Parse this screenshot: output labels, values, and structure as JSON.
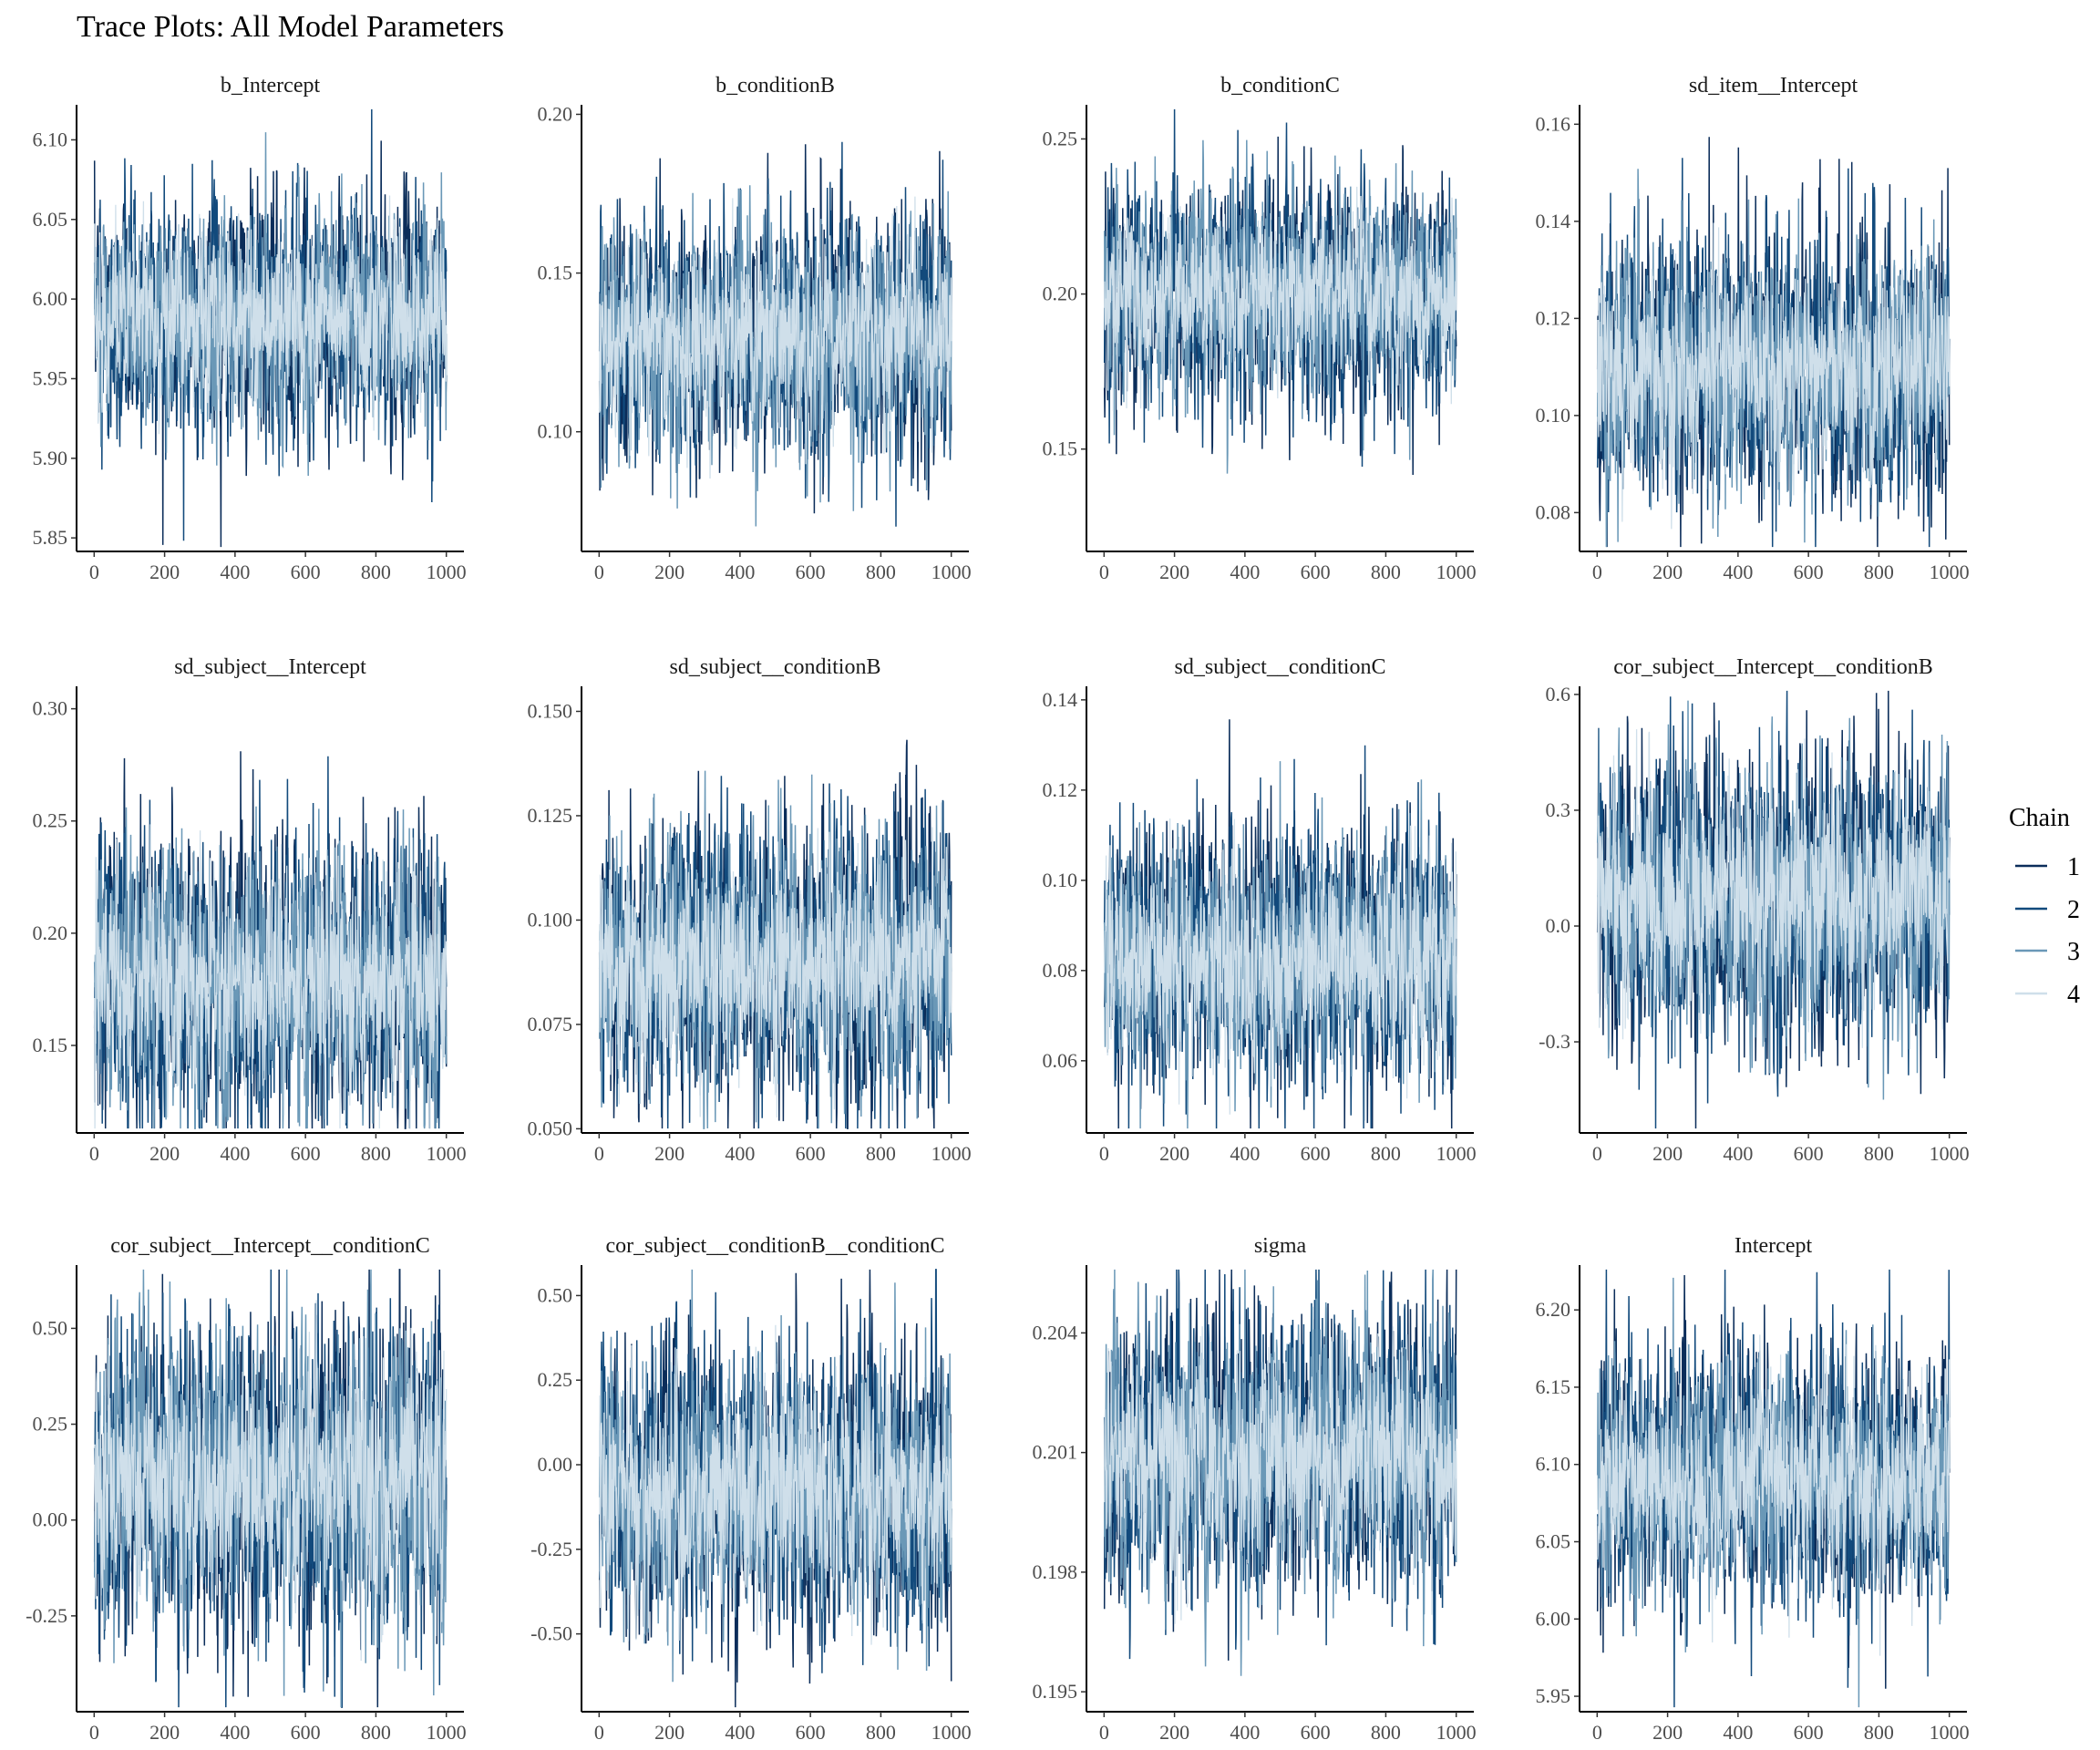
{
  "title": "Trace Plots: All Model Parameters",
  "chart_data": {
    "type": "line",
    "title": "Trace Plots: All Model Parameters",
    "xlabel": "",
    "ylabel": "",
    "x_range": [
      0,
      1000
    ],
    "xlim": [
      -50,
      1050
    ],
    "xticks": [
      0,
      200,
      400,
      600,
      800,
      1000
    ],
    "xtick_labels": [
      "0",
      "200",
      "400",
      "600",
      "800",
      "1000"
    ],
    "grid": false,
    "legend": {
      "title": "Chain",
      "position": "right",
      "entries": [
        "1",
        "2",
        "3",
        "4"
      ],
      "colors": [
        "#0b2d5a",
        "#124a7c",
        "#6a98b7",
        "#cfdfea"
      ]
    },
    "panels": [
      {
        "name": "b_Intercept",
        "ylim": [
          5.8415,
          6.122
        ],
        "yticks": [
          5.85,
          5.9,
          5.95,
          6.0,
          6.05,
          6.1
        ],
        "ytick_labels": [
          "5.85",
          "5.90",
          "5.95",
          "6.00",
          "6.05",
          "6.10"
        ],
        "mean": 5.99,
        "sd": 0.035
      },
      {
        "name": "b_conditionB",
        "ylim": [
          0.0623,
          0.203
        ],
        "yticks": [
          0.1,
          0.15,
          0.2
        ],
        "ytick_labels": [
          "0.10",
          "0.15",
          "0.20"
        ],
        "mean": 0.13,
        "sd": 0.018
      },
      {
        "name": "b_conditionC",
        "ylim": [
          0.117,
          0.261
        ],
        "yticks": [
          0.15,
          0.2,
          0.25
        ],
        "ytick_labels": [
          "0.15",
          "0.20",
          "0.25"
        ],
        "mean": 0.2,
        "sd": 0.017
      },
      {
        "name": "sd_item__Intercept",
        "ylim": [
          0.072,
          0.164
        ],
        "yticks": [
          0.08,
          0.1,
          0.12,
          0.14,
          0.16
        ],
        "ytick_labels": [
          "0.08",
          "0.10",
          "0.12",
          "0.14",
          "0.16"
        ],
        "mean": 0.11,
        "sd": 0.013
      },
      {
        "name": "sd_subject__Intercept",
        "ylim": [
          0.111,
          0.31
        ],
        "yticks": [
          0.15,
          0.2,
          0.25,
          0.3
        ],
        "ytick_labels": [
          "0.15",
          "0.20",
          "0.25",
          "0.30"
        ],
        "mean": 0.18,
        "sd": 0.03
      },
      {
        "name": "sd_subject__conditionB",
        "ylim": [
          0.049,
          0.156
        ],
        "yticks": [
          0.05,
          0.075,
          0.1,
          0.125,
          0.15
        ],
        "ytick_labels": [
          "0.050",
          "0.075",
          "0.100",
          "0.125",
          "0.150"
        ],
        "mean": 0.09,
        "sd": 0.016
      },
      {
        "name": "sd_subject__conditionC",
        "ylim": [
          0.044,
          0.143
        ],
        "yticks": [
          0.06,
          0.08,
          0.1,
          0.12,
          0.14
        ],
        "ytick_labels": [
          "0.06",
          "0.08",
          "0.10",
          "0.12",
          "0.14"
        ],
        "mean": 0.083,
        "sd": 0.014
      },
      {
        "name": "cor_subject__Intercept__conditionB",
        "ylim": [
          -0.536,
          0.621
        ],
        "yticks": [
          -0.3,
          0.0,
          0.3,
          0.6
        ],
        "ytick_labels": [
          "-0.3",
          "0.0",
          "0.3",
          "0.6"
        ],
        "mean": 0.07,
        "sd": 0.18
      },
      {
        "name": "cor_subject__Intercept__conditionC",
        "ylim": [
          -0.5,
          0.665
        ],
        "yticks": [
          -0.25,
          0.0,
          0.25,
          0.5
        ],
        "ytick_labels": [
          "-0.25",
          "0.00",
          "0.25",
          "0.50"
        ],
        "mean": 0.1,
        "sd": 0.2
      },
      {
        "name": "cor_subject__conditionB__conditionC",
        "ylim": [
          -0.73,
          0.59
        ],
        "yticks": [
          -0.5,
          -0.25,
          0.0,
          0.25,
          0.5
        ],
        "ytick_labels": [
          "-0.50",
          "-0.25",
          "0.00",
          "0.25",
          "0.50"
        ],
        "mean": -0.08,
        "sd": 0.2
      },
      {
        "name": "sigma",
        "ylim": [
          0.1945,
          0.2057
        ],
        "yticks": [
          0.195,
          0.198,
          0.201,
          0.204
        ],
        "ytick_labels": [
          "0.195",
          "0.198",
          "0.201",
          "0.204"
        ],
        "mean": 0.201,
        "sd": 0.0017
      },
      {
        "name": "Intercept",
        "ylim": [
          5.94,
          6.229
        ],
        "yticks": [
          5.95,
          6.0,
          6.05,
          6.1,
          6.15,
          6.2
        ],
        "ytick_labels": [
          "5.95",
          "6.00",
          "6.05",
          "6.10",
          "6.15",
          "6.20"
        ],
        "mean": 6.09,
        "sd": 0.04
      }
    ]
  }
}
